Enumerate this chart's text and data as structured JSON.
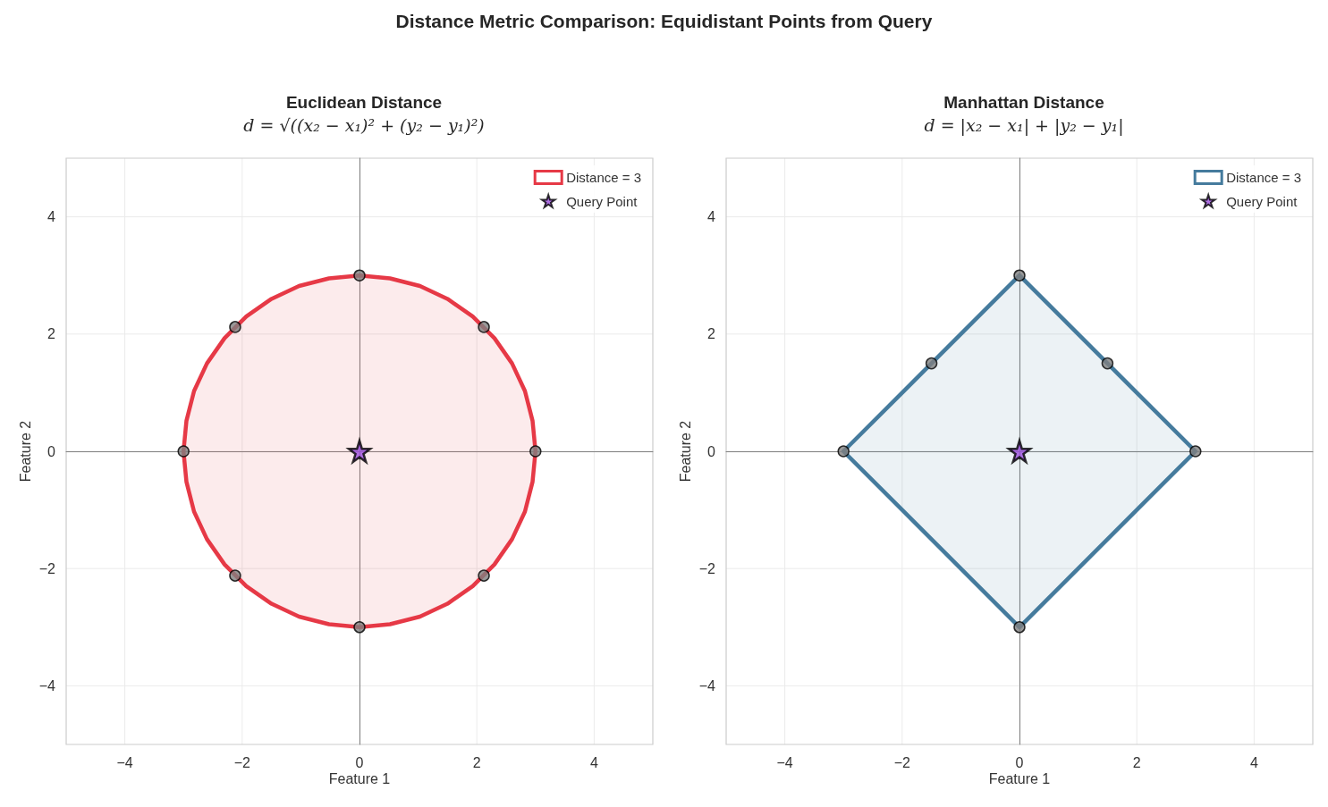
{
  "chart_data": [
    {
      "type": "scatter",
      "title": "Euclidean Distance",
      "subtitle": "d = √((x₂ − x₁)² + (y₂ − y₁)²)",
      "annotations": [
        "Distance Metric Comparison: Equidistant Points from Query"
      ],
      "xlabel": "Feature 1",
      "ylabel": "Feature 2",
      "xlim": [
        -5,
        5
      ],
      "ylim": [
        -5,
        5
      ],
      "xticks": [
        -4,
        -2,
        0,
        2,
        4
      ],
      "yticks": [
        -4,
        -2,
        0,
        2,
        4
      ],
      "grid": true,
      "legend": "top right",
      "series": [
        {
          "type": "area",
          "name": "Distance = 3",
          "color": "#e63946",
          "x": [
            3,
            2.95,
            2.82,
            2.6,
            2.3,
            1.93,
            1.5,
            1.03,
            0.52,
            0,
            -0.52,
            -1.03,
            -1.5,
            -1.93,
            -2.3,
            -2.6,
            -2.82,
            -2.95,
            -3,
            -2.95,
            -2.82,
            -2.6,
            -2.3,
            -1.93,
            -1.5,
            -1.03,
            -0.52,
            0,
            0.52,
            1.03,
            1.5,
            1.93,
            2.3,
            2.6,
            2.82,
            2.95,
            3
          ],
          "values": [
            0,
            0.52,
            1.03,
            1.5,
            1.93,
            2.3,
            2.6,
            2.82,
            2.95,
            3,
            2.95,
            2.82,
            2.6,
            2.3,
            1.93,
            1.5,
            1.03,
            0.52,
            0,
            -0.52,
            -1.03,
            -1.5,
            -1.93,
            -2.3,
            -2.6,
            -2.82,
            -2.95,
            -3,
            -2.95,
            -2.82,
            -2.6,
            -2.3,
            -1.93,
            -1.5,
            -1.03,
            -0.52,
            0
          ]
        },
        {
          "type": "scatter",
          "color": "#808080",
          "marker": "circle",
          "x": [
            0,
            2.12,
            3,
            2.12,
            0,
            -2.12,
            -3,
            -2.12
          ],
          "values": [
            3,
            2.12,
            0,
            -2.12,
            -3,
            -2.12,
            0,
            2.12
          ]
        },
        {
          "type": "scatter",
          "name": "Query Point",
          "color": "#9b4dde",
          "marker": "star",
          "x": [
            0
          ],
          "values": [
            0
          ]
        }
      ]
    },
    {
      "type": "scatter",
      "title": "Manhattan Distance",
      "subtitle": "d = |x₂ − x₁| + |y₂ − y₁|",
      "xlabel": "Feature 1",
      "ylabel": "Feature 2",
      "xlim": [
        -5,
        5
      ],
      "ylim": [
        -5,
        5
      ],
      "xticks": [
        -4,
        -2,
        0,
        2,
        4
      ],
      "yticks": [
        -4,
        -2,
        0,
        2,
        4
      ],
      "grid": true,
      "legend": "top right",
      "series": [
        {
          "type": "area",
          "name": "Distance = 3",
          "color": "#457b9d",
          "x": [
            3,
            0,
            -3,
            0,
            3
          ],
          "values": [
            0,
            3,
            0,
            -3,
            0
          ]
        },
        {
          "type": "scatter",
          "color": "#808080",
          "marker": "circle",
          "x": [
            0,
            1.5,
            3,
            0,
            -3,
            -1.5
          ],
          "values": [
            3,
            1.5,
            0,
            -3,
            0,
            1.5
          ]
        },
        {
          "type": "scatter",
          "name": "Query Point",
          "color": "#9b4dde",
          "marker": "star",
          "x": [
            0
          ],
          "values": [
            0
          ]
        }
      ]
    }
  ]
}
